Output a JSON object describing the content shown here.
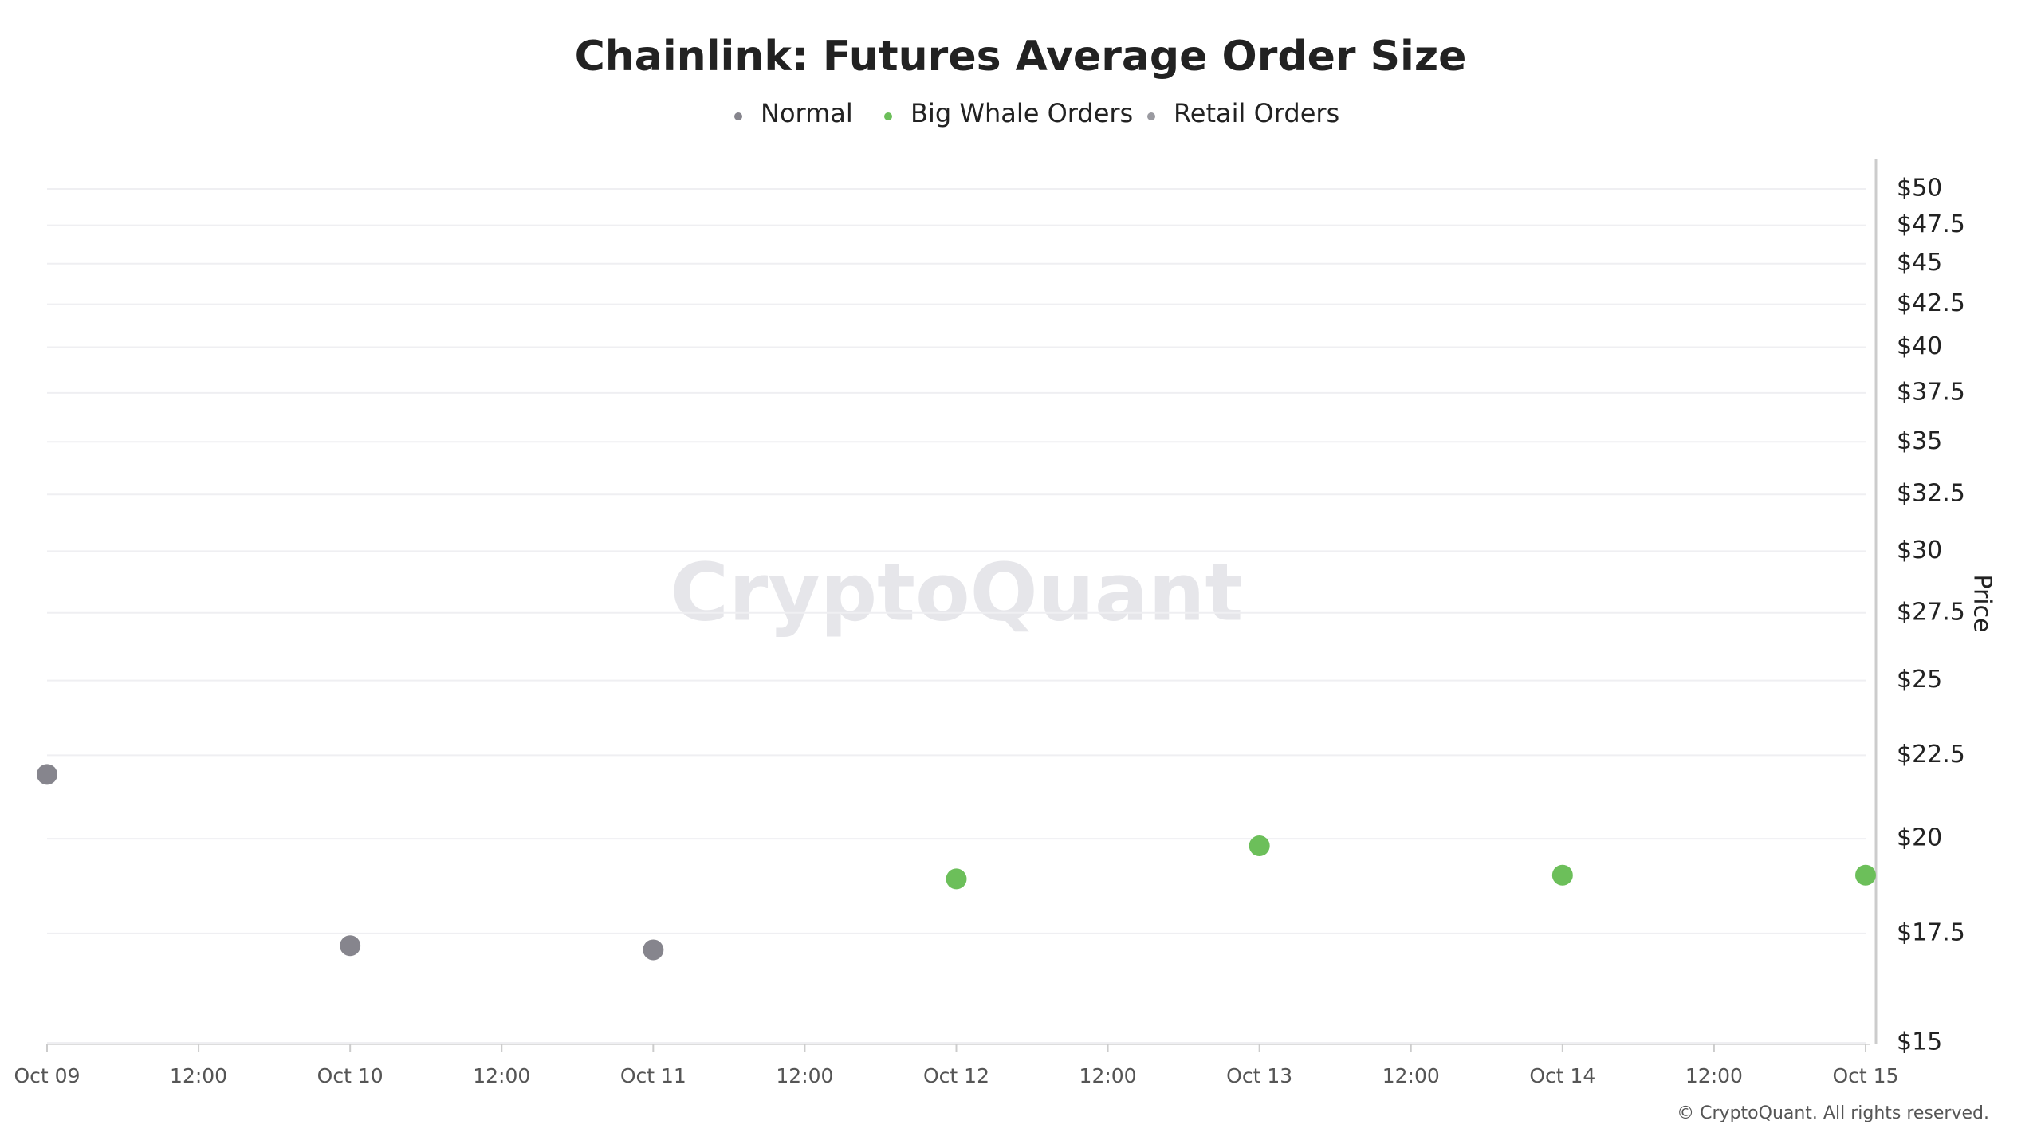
{
  "chart_data": {
    "type": "scatter",
    "title": "Chainlink: Futures Average Order Size",
    "categories": [
      "Oct 09",
      "12:00",
      "Oct 10",
      "12:00",
      "Oct 11",
      "12:00",
      "Oct 12",
      "12:00",
      "Oct 13",
      "12:00",
      "Oct 14",
      "12:00",
      "Oct 15"
    ],
    "series": [
      {
        "name": "Normal",
        "color": "#86858d",
        "values": [
          21.9,
          null,
          17.2,
          null,
          17.1,
          null,
          null,
          null,
          null,
          null,
          null,
          null,
          null
        ]
      },
      {
        "name": "Big Whale Orders",
        "color": "#6cbf5a",
        "values": [
          null,
          null,
          null,
          null,
          null,
          null,
          18.9,
          null,
          19.8,
          null,
          19.0,
          null,
          19.0
        ]
      },
      {
        "name": "Retail Orders",
        "color": "#9a9aa0",
        "values": [
          null,
          null,
          null,
          null,
          null,
          null,
          null,
          null,
          null,
          null,
          null,
          null,
          null
        ]
      }
    ],
    "ylabel": "Price",
    "log_y": true,
    "grid": true,
    "ylim": [
      15,
      50
    ],
    "yticks": [
      {
        "value": 15,
        "label": "$15"
      },
      {
        "value": 17.5,
        "label": "$17.5"
      },
      {
        "value": 20,
        "label": "$20"
      },
      {
        "value": 22.5,
        "label": "$22.5"
      },
      {
        "value": 25,
        "label": "$25"
      },
      {
        "value": 27.5,
        "label": "$27.5"
      },
      {
        "value": 30,
        "label": "$30"
      },
      {
        "value": 32.5,
        "label": "$32.5"
      },
      {
        "value": 35,
        "label": "$35"
      },
      {
        "value": 37.5,
        "label": "$37.5"
      },
      {
        "value": 40,
        "label": "$40"
      },
      {
        "value": 42.5,
        "label": "$42.5"
      },
      {
        "value": 45,
        "label": "$45"
      },
      {
        "value": 47.5,
        "label": "$47.5"
      },
      {
        "value": 50,
        "label": "$50"
      }
    ],
    "watermark": "CryptoQuant",
    "footer": "© CryptoQuant. All rights reserved."
  }
}
